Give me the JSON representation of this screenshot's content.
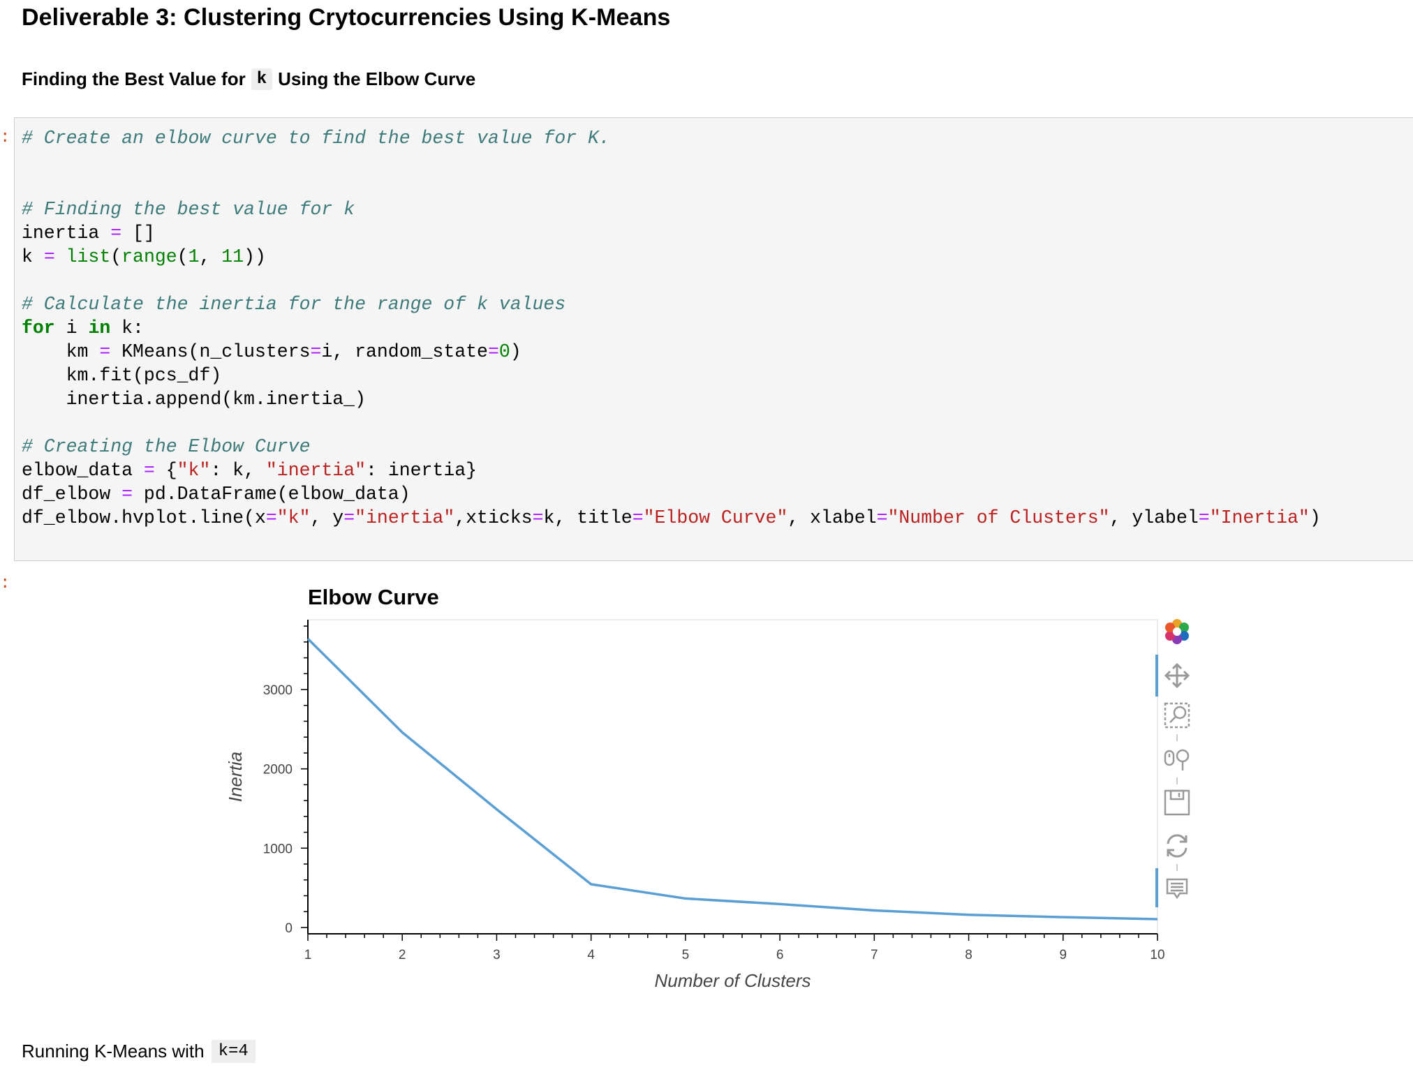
{
  "heading": "Deliverable 3: Clustering Crytocurrencies Using K-Means",
  "subheading": {
    "before": "Finding the Best Value for",
    "code": "k",
    "after": "Using the Elbow Curve"
  },
  "code_cell": {
    "prompt": ":",
    "lines": [
      "# Create an elbow curve to find the best value for K.",
      "",
      "",
      "# Finding the best value for k",
      "inertia = []",
      "k = list(range(1, 11))",
      "",
      "# Calculate the inertia for the range of k values",
      "for i in k:",
      "    km = KMeans(n_clusters=i, random_state=0)",
      "    km.fit(pcs_df)",
      "    inertia.append(km.inertia_)",
      "",
      "# Creating the Elbow Curve",
      "elbow_data = {\"k\": k, \"inertia\": inertia}",
      "df_elbow = pd.DataFrame(elbow_data)",
      "df_elbow.hvplot.line(x=\"k\", y=\"inertia\",xticks=k, title=\"Elbow Curve\", xlabel=\"Number of Clusters\", ylabel=\"Inertia\")"
    ]
  },
  "output_prompt": ":",
  "chart_data": {
    "type": "line",
    "title": "Elbow Curve",
    "xlabel": "Number of Clusters",
    "ylabel": "Inertia",
    "x": [
      1,
      2,
      3,
      4,
      5,
      6,
      7,
      8,
      9,
      10
    ],
    "series": [
      {
        "values": [
          3640,
          2460,
          1490,
          545,
          365,
          295,
          215,
          160,
          130,
          105
        ]
      }
    ],
    "xlim": [
      1,
      10
    ],
    "ylim": [
      -80,
      3880
    ],
    "xticks": [
      1,
      2,
      3,
      4,
      5,
      6,
      7,
      8,
      9,
      10
    ],
    "yticks": [
      0,
      1000,
      2000,
      3000
    ],
    "line_color": "#5a9fd4",
    "grid": false
  },
  "toolbar": {
    "icons": [
      "bokeh-logo-icon",
      "pan-icon",
      "box-zoom-icon",
      "wheel-zoom-icon",
      "save-icon",
      "reset-icon",
      "hover-icon"
    ]
  },
  "bottom": {
    "text": "Running K-Means with",
    "code": "k=4"
  }
}
